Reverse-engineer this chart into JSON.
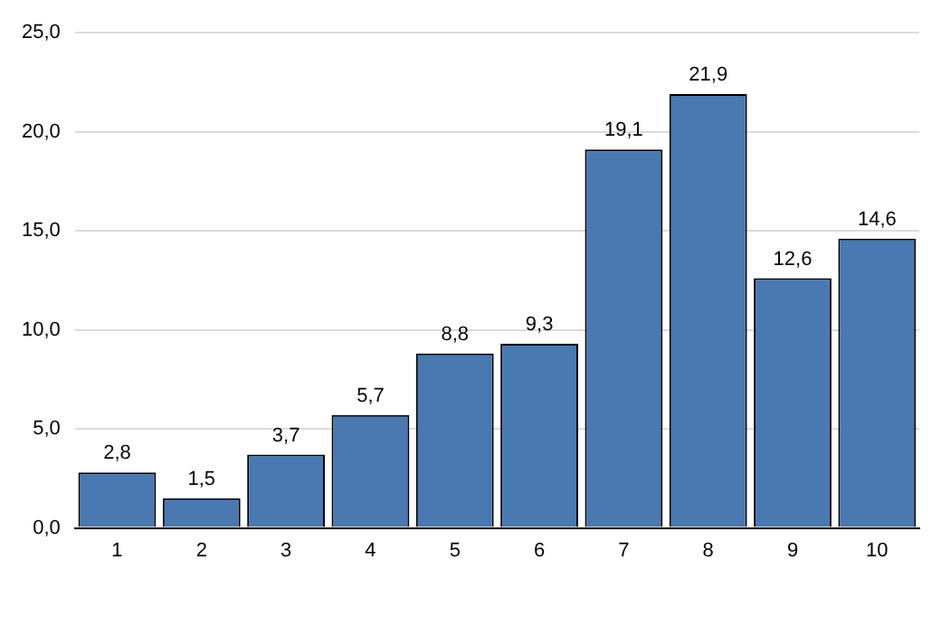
{
  "chart_data": {
    "type": "bar",
    "categories": [
      "1",
      "2",
      "3",
      "4",
      "5",
      "6",
      "7",
      "8",
      "9",
      "10"
    ],
    "values": [
      2.8,
      1.5,
      3.7,
      5.7,
      8.8,
      9.3,
      19.1,
      21.9,
      12.6,
      14.6
    ],
    "value_labels": [
      "2,8",
      "1,5",
      "3,7",
      "5,7",
      "8,8",
      "9,3",
      "19,1",
      "21,9",
      "12,6",
      "14,6"
    ],
    "color": "#4a78b0",
    "ylim": [
      0,
      25
    ],
    "yticks": [
      {
        "value": 0,
        "label": "0,0"
      },
      {
        "value": 5,
        "label": "5,0"
      },
      {
        "value": 10,
        "label": "10,0"
      },
      {
        "value": 15,
        "label": "15,0"
      },
      {
        "value": 20,
        "label": "20,0"
      },
      {
        "value": 25,
        "label": "25,0"
      }
    ],
    "grid": "y",
    "legend": false
  }
}
